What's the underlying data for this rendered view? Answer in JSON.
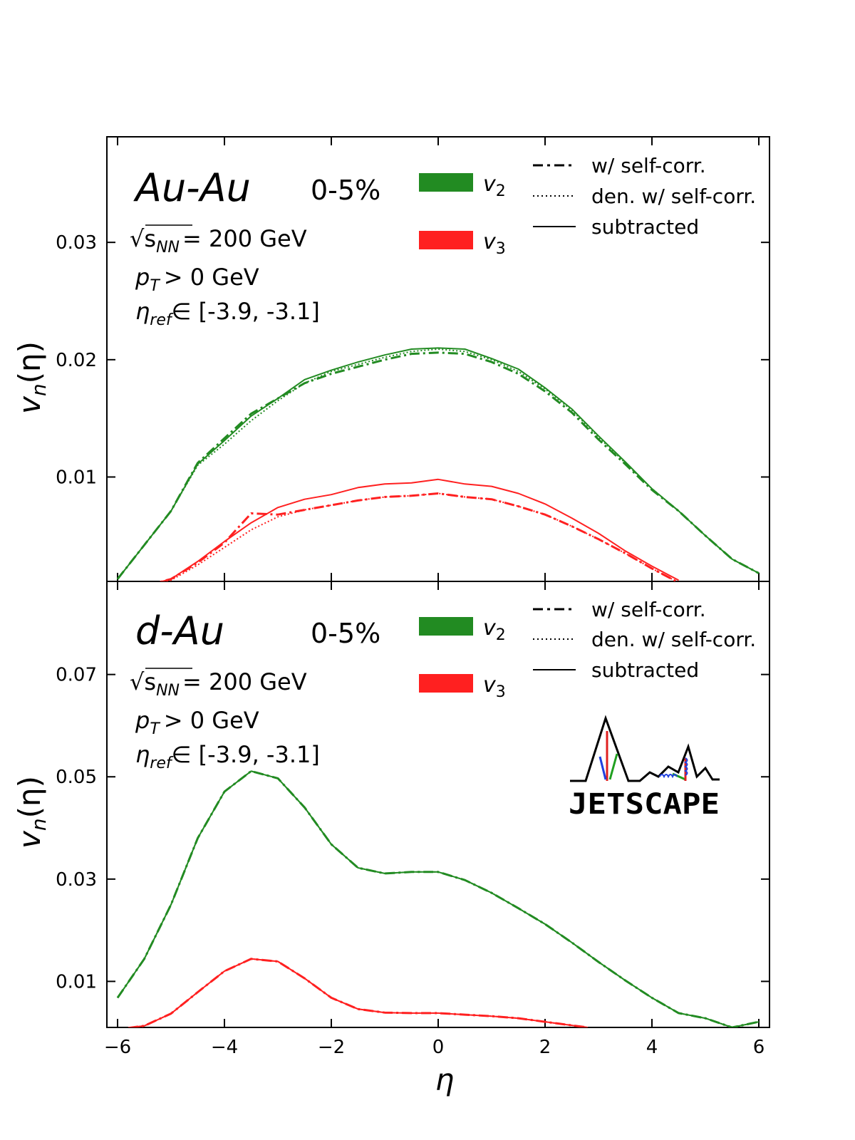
{
  "chart_data": [
    {
      "type": "line",
      "panel": "top",
      "system_label": "Au-Au",
      "centrality": "0-5%",
      "info": {
        "energy_sym": "√s",
        "energy_sub": "NN",
        "energy_rest": "= 200 GeV",
        "pt_sym": "p",
        "pt_sub": "T",
        "pt_rest": "> 0 GeV",
        "eta_sym": "η",
        "eta_sub": "ref",
        "eta_rest": "∈ [-3.9, -3.1]"
      },
      "ylabel_main": "v",
      "ylabel_sub": "n",
      "ylabel_rest": "(η)",
      "xlim": [
        -6.2,
        6.2
      ],
      "ylim": [
        0.0011,
        0.039
      ],
      "yticks": [
        0.01,
        0.02,
        0.03
      ],
      "ytick_labels": [
        "0.01",
        "0.02",
        "0.03"
      ],
      "legend_series": [
        {
          "sym": "v",
          "sub": "2",
          "color": "#228b22"
        },
        {
          "sym": "v",
          "sub": "3",
          "color": "#ff2020"
        }
      ],
      "legend_styles": [
        "w/ self-corr.",
        "den. w/ self-corr.",
        "subtracted"
      ],
      "series": [
        {
          "name": "v2 w/ self-corr.",
          "color": "#228b22",
          "style": "dashdot",
          "x": [
            -6,
            -5.5,
            -5,
            -4.5,
            -4,
            -3.5,
            -3,
            -2.5,
            -2,
            -1.5,
            -1,
            -0.5,
            0,
            0.5,
            1,
            1.5,
            2,
            2.5,
            3,
            3.5,
            4,
            4.5,
            5,
            5.5,
            6
          ],
          "values": [
            0.0013,
            0.0042,
            0.0071,
            0.0112,
            0.0133,
            0.0154,
            0.0167,
            0.018,
            0.0188,
            0.0194,
            0.02,
            0.0205,
            0.0206,
            0.0205,
            0.0198,
            0.0188,
            0.0173,
            0.0155,
            0.0132,
            0.0111,
            0.0089,
            0.0071,
            0.005,
            0.003,
            0.0018
          ]
        },
        {
          "name": "v2 den. w/ self-corr.",
          "color": "#228b22",
          "style": "dotted",
          "x": [
            -6,
            -5.5,
            -5,
            -4.5,
            -4,
            -3.5,
            -3,
            -2.5,
            -2,
            -1.5,
            -1,
            -0.5,
            0,
            0.5,
            1,
            1.5,
            2,
            2.5,
            3,
            3.5,
            4,
            4.5,
            5,
            5.5,
            6
          ],
          "values": [
            0.0013,
            0.0042,
            0.0071,
            0.011,
            0.0128,
            0.0148,
            0.0165,
            0.018,
            0.019,
            0.0196,
            0.0202,
            0.0207,
            0.0209,
            0.0207,
            0.02,
            0.019,
            0.0175,
            0.0157,
            0.0134,
            0.0112,
            0.009,
            0.0071,
            0.005,
            0.003,
            0.0018
          ]
        },
        {
          "name": "v2 subtracted",
          "color": "#228b22",
          "style": "solid",
          "x": [
            -6,
            -5.5,
            -5,
            -4.5,
            -4,
            -3.5,
            -3,
            -2.5,
            -2,
            -1.5,
            -1,
            -0.5,
            0,
            0.5,
            1,
            1.5,
            2,
            2.5,
            3,
            3.5,
            4,
            4.5,
            5,
            5.5,
            6
          ],
          "values": [
            0.0013,
            0.0042,
            0.0071,
            0.0111,
            0.0131,
            0.0152,
            0.0167,
            0.0183,
            0.0191,
            0.0198,
            0.0204,
            0.0209,
            0.021,
            0.0209,
            0.0201,
            0.0192,
            0.0176,
            0.0158,
            0.0135,
            0.0113,
            0.009,
            0.0071,
            0.005,
            0.003,
            0.0018
          ]
        },
        {
          "name": "v3 w/ self-corr.",
          "color": "#ff2020",
          "style": "dashdot",
          "x": [
            -5.8,
            -5.5,
            -5,
            -4.5,
            -4,
            -3.6,
            -3.5,
            -3,
            -2.5,
            -2,
            -1.5,
            -1,
            -0.5,
            0,
            0.5,
            1,
            1.5,
            2,
            2.5,
            3,
            3.5,
            4,
            4.5
          ],
          "values": [
            0.0005,
            0.0007,
            0.0013,
            0.0027,
            0.0044,
            0.0064,
            0.0069,
            0.0068,
            0.0072,
            0.0076,
            0.008,
            0.0083,
            0.0084,
            0.0086,
            0.0083,
            0.0081,
            0.0075,
            0.0068,
            0.0058,
            0.0047,
            0.0035,
            0.0022,
            0.001
          ]
        },
        {
          "name": "v3 den. w/ self-corr.",
          "color": "#ff2020",
          "style": "dotted",
          "x": [
            -5.8,
            -5.5,
            -5,
            -4.5,
            -4,
            -3.5,
            -3,
            -2.5,
            -2,
            -1.5,
            -1,
            -0.5,
            0,
            0.5,
            1,
            1.5,
            2,
            2.5,
            3,
            3.5,
            4,
            4.5
          ],
          "values": [
            0.0005,
            0.0007,
            0.0012,
            0.0025,
            0.004,
            0.0055,
            0.0066,
            0.0072,
            0.0076,
            0.008,
            0.0083,
            0.0084,
            0.0086,
            0.0083,
            0.0081,
            0.0075,
            0.0068,
            0.0058,
            0.0047,
            0.0035,
            0.0022,
            0.001
          ]
        },
        {
          "name": "v3 subtracted",
          "color": "#ff2020",
          "style": "solid",
          "x": [
            -5.8,
            -5.5,
            -5,
            -4.5,
            -4,
            -3.5,
            -3,
            -2.5,
            -2,
            -1.5,
            -1,
            -0.5,
            0,
            0.5,
            1,
            1.5,
            2,
            2.5,
            3,
            3.5,
            4,
            4.5
          ],
          "values": [
            0.0005,
            0.0007,
            0.0013,
            0.0028,
            0.0045,
            0.0061,
            0.0074,
            0.0081,
            0.0085,
            0.0091,
            0.0094,
            0.0095,
            0.0098,
            0.0094,
            0.0092,
            0.0086,
            0.0077,
            0.0065,
            0.0052,
            0.0037,
            0.0024,
            0.0012
          ]
        }
      ]
    },
    {
      "type": "line",
      "panel": "bottom",
      "system_label": "d-Au",
      "centrality": "0-5%",
      "info": {
        "energy_sym": "√s",
        "energy_sub": "NN",
        "energy_rest": "= 200 GeV",
        "pt_sym": "p",
        "pt_sub": "T",
        "pt_rest": "> 0 GeV",
        "eta_sym": "η",
        "eta_sub": "ref",
        "eta_rest": "∈ [-3.9, -3.1]"
      },
      "ylabel_main": "v",
      "ylabel_sub": "n",
      "ylabel_rest": "(η)",
      "xlabel": "η",
      "xlim": [
        -6.2,
        6.2
      ],
      "ylim": [
        0.001,
        0.0882
      ],
      "xticks": [
        -6,
        -4,
        -2,
        0,
        2,
        4,
        6
      ],
      "xtick_labels": [
        "−6",
        "−4",
        "−2",
        "0",
        "2",
        "4",
        "6"
      ],
      "yticks": [
        0.01,
        0.03,
        0.05,
        0.07
      ],
      "ytick_labels": [
        "0.01",
        "0.03",
        "0.05",
        "0.07"
      ],
      "legend_series": [
        {
          "sym": "v",
          "sub": "2",
          "color": "#228b22"
        },
        {
          "sym": "v",
          "sub": "3",
          "color": "#ff2020"
        }
      ],
      "legend_styles": [
        "w/ self-corr.",
        "den. w/ self-corr.",
        "subtracted"
      ],
      "logo_text": "JETSCAPE",
      "series": [
        {
          "name": "v2 w/ self-corr.",
          "color": "#228b22",
          "style": "dashdot",
          "x": [
            -6,
            -5.5,
            -5,
            -4.5,
            -4,
            -3.5,
            -3,
            -2.5,
            -2,
            -1.5,
            -1,
            -0.5,
            0,
            0.5,
            1,
            1.5,
            2,
            2.5,
            3,
            3.5,
            4,
            4.5,
            5,
            5.5,
            6
          ],
          "values": [
            0.0068,
            0.0144,
            0.025,
            0.038,
            0.0471,
            0.0511,
            0.0497,
            0.044,
            0.0368,
            0.0322,
            0.0311,
            0.0314,
            0.0314,
            0.0298,
            0.0273,
            0.0243,
            0.0212,
            0.0176,
            0.0138,
            0.0102,
            0.0068,
            0.0038,
            0.0028,
            0.001,
            0.0021
          ]
        },
        {
          "name": "v2 den. w/ self-corr.",
          "color": "#228b22",
          "style": "dotted",
          "x": [
            -6,
            -5.5,
            -5,
            -4.5,
            -4,
            -3.5,
            -3,
            -2.5,
            -2,
            -1.5,
            -1,
            -0.5,
            0,
            0.5,
            1,
            1.5,
            2,
            2.5,
            3,
            3.5,
            4,
            4.5,
            5,
            5.5,
            6
          ],
          "values": [
            0.0068,
            0.0144,
            0.025,
            0.038,
            0.0471,
            0.0511,
            0.0497,
            0.044,
            0.0368,
            0.0322,
            0.0311,
            0.0314,
            0.0314,
            0.0298,
            0.0273,
            0.0243,
            0.0212,
            0.0176,
            0.0138,
            0.0102,
            0.0068,
            0.0038,
            0.0028,
            0.001,
            0.0021
          ]
        },
        {
          "name": "v2 subtracted",
          "color": "#228b22",
          "style": "solid",
          "x": [
            -6,
            -5.5,
            -5,
            -4.5,
            -4,
            -3.5,
            -3,
            -2.5,
            -2,
            -1.5,
            -1,
            -0.5,
            0,
            0.5,
            1,
            1.5,
            2,
            2.5,
            3,
            3.5,
            4,
            4.5,
            5,
            5.5,
            6
          ],
          "values": [
            0.0068,
            0.0144,
            0.025,
            0.038,
            0.0471,
            0.0511,
            0.0497,
            0.044,
            0.0368,
            0.0322,
            0.0311,
            0.0314,
            0.0314,
            0.0298,
            0.0273,
            0.0243,
            0.0212,
            0.0176,
            0.0138,
            0.0102,
            0.0068,
            0.0038,
            0.0028,
            0.001,
            0.0021
          ]
        },
        {
          "name": "v3 w/ self-corr.",
          "color": "#ff2020",
          "style": "dashdot",
          "x": [
            -5.8,
            -5.5,
            -5,
            -4.5,
            -4,
            -3.5,
            -3,
            -2.5,
            -2,
            -1.5,
            -1,
            -0.5,
            0,
            0.5,
            1,
            1.5,
            2,
            2.5,
            2.8
          ],
          "values": [
            0.0009,
            0.0013,
            0.0037,
            0.0079,
            0.012,
            0.0144,
            0.0139,
            0.0106,
            0.0068,
            0.0046,
            0.0039,
            0.0038,
            0.0038,
            0.0035,
            0.0032,
            0.0028,
            0.0021,
            0.0014,
            0.001
          ]
        },
        {
          "name": "v3 den. w/ self-corr.",
          "color": "#ff2020",
          "style": "dotted",
          "x": [
            -5.8,
            -5.5,
            -5,
            -4.5,
            -4,
            -3.5,
            -3,
            -2.5,
            -2,
            -1.5,
            -1,
            -0.5,
            0,
            0.5,
            1,
            1.5,
            2,
            2.5,
            2.8
          ],
          "values": [
            0.0009,
            0.0013,
            0.0037,
            0.0079,
            0.012,
            0.0144,
            0.0139,
            0.0106,
            0.0068,
            0.0046,
            0.0039,
            0.0038,
            0.0038,
            0.0035,
            0.0032,
            0.0028,
            0.0021,
            0.0014,
            0.001
          ]
        },
        {
          "name": "v3 subtracted",
          "color": "#ff2020",
          "style": "solid",
          "x": [
            -5.8,
            -5.5,
            -5,
            -4.5,
            -4,
            -3.5,
            -3,
            -2.5,
            -2,
            -1.5,
            -1,
            -0.5,
            0,
            0.5,
            1,
            1.5,
            2,
            2.5,
            2.8
          ],
          "values": [
            0.0009,
            0.0013,
            0.0037,
            0.0079,
            0.012,
            0.0144,
            0.0139,
            0.0106,
            0.0068,
            0.0046,
            0.0039,
            0.0038,
            0.0038,
            0.0035,
            0.0032,
            0.0028,
            0.0021,
            0.0014,
            0.001
          ]
        }
      ]
    }
  ]
}
